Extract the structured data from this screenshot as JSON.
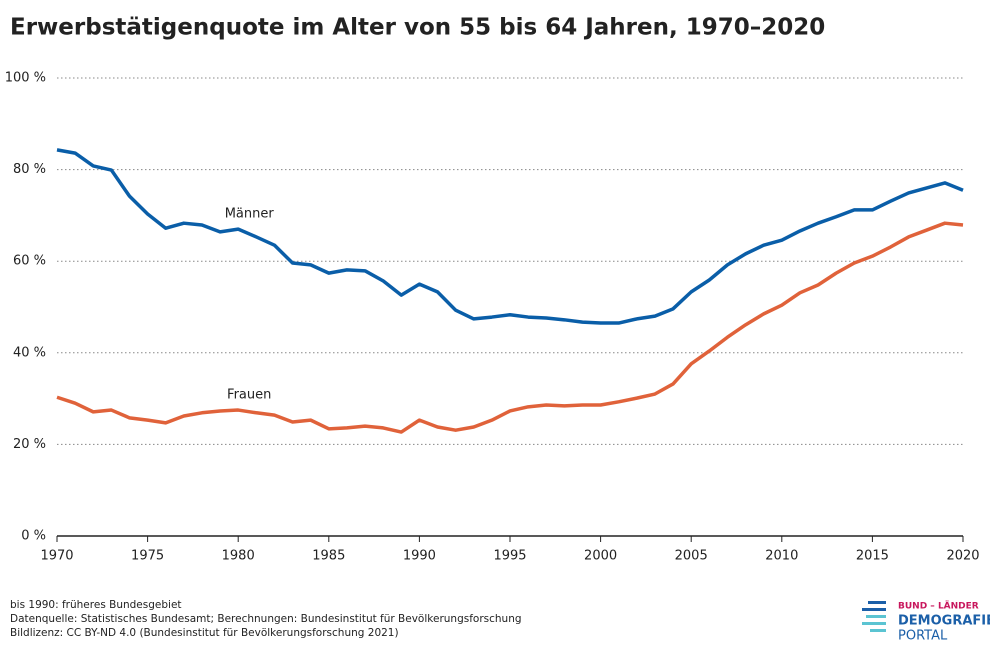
{
  "chart_data": {
    "type": "line",
    "title": "Erwerbstätigenquote im Alter von 55 bis 64 Jahren, 1970–2020",
    "x": [
      1970,
      1971,
      1972,
      1973,
      1974,
      1975,
      1976,
      1977,
      1978,
      1979,
      1980,
      1981,
      1982,
      1983,
      1984,
      1985,
      1986,
      1987,
      1988,
      1989,
      1990,
      1991,
      1992,
      1993,
      1994,
      1995,
      1996,
      1997,
      1998,
      1999,
      2000,
      2001,
      2002,
      2003,
      2004,
      2005,
      2006,
      2007,
      2008,
      2009,
      2010,
      2011,
      2012,
      2013,
      2014,
      2015,
      2016,
      2017,
      2018,
      2019,
      2020
    ],
    "series": [
      {
        "name": "Männer",
        "color": "#0a5ea8",
        "values": [
          84.3,
          83.6,
          80.8,
          79.9,
          74.2,
          70.3,
          67.2,
          68.3,
          67.9,
          66.4,
          67.0,
          65.3,
          63.5,
          59.6,
          59.2,
          57.4,
          58.1,
          57.9,
          55.7,
          52.6,
          55.0,
          53.3,
          49.3,
          47.4,
          47.8,
          48.3,
          47.8,
          47.6,
          47.2,
          46.7,
          46.5,
          46.5,
          47.4,
          48.0,
          49.6,
          53.3,
          55.9,
          59.2,
          61.6,
          63.5,
          64.6,
          66.6,
          68.3,
          69.7,
          71.2,
          71.2,
          73.1,
          74.9,
          76.0,
          77.1,
          75.5
        ]
      },
      {
        "name": "Frauen",
        "color": "#e0623a",
        "values": [
          30.3,
          29.0,
          27.1,
          27.5,
          25.8,
          25.3,
          24.7,
          26.2,
          26.9,
          27.3,
          27.5,
          26.9,
          26.4,
          24.9,
          25.3,
          23.4,
          23.6,
          24.0,
          23.6,
          22.7,
          25.3,
          23.8,
          23.1,
          23.8,
          25.3,
          27.3,
          28.2,
          28.6,
          28.4,
          28.6,
          28.6,
          29.3,
          30.1,
          31.0,
          33.2,
          37.6,
          40.4,
          43.4,
          46.1,
          48.5,
          50.4,
          53.1,
          54.8,
          57.4,
          59.6,
          61.1,
          63.1,
          65.3,
          66.8,
          68.3,
          67.9
        ]
      }
    ],
    "xlim": [
      1970,
      2020
    ],
    "xticks": [
      1970,
      1975,
      1980,
      1985,
      1990,
      1995,
      2000,
      2005,
      2010,
      2015,
      2020
    ],
    "ylim": [
      0,
      100
    ],
    "yticks": [
      {
        "value": 0,
        "label": "0 %"
      },
      {
        "value": 20,
        "label": "20 %"
      },
      {
        "value": 40,
        "label": "40 %"
      },
      {
        "value": 60,
        "label": "60 %"
      },
      {
        "value": 80,
        "label": "80 %"
      },
      {
        "value": 100,
        "label": "100 %"
      }
    ],
    "grid": true,
    "notes": [
      "bis 1990: früheres Bundesgebiet",
      "Datenquelle: Statistisches Bundesamt; Berechnungen: Bundesinstitut für Bevölkerungsforschung",
      "Bildlizenz: CC BY-ND 4.0 (Bundesinstitut für Bevölkerungsforschung 2021)"
    ]
  },
  "logo": {
    "top": "BUND – LÄNDER",
    "line1": "DEMOGRAFIE",
    "line2": "PORTAL"
  }
}
